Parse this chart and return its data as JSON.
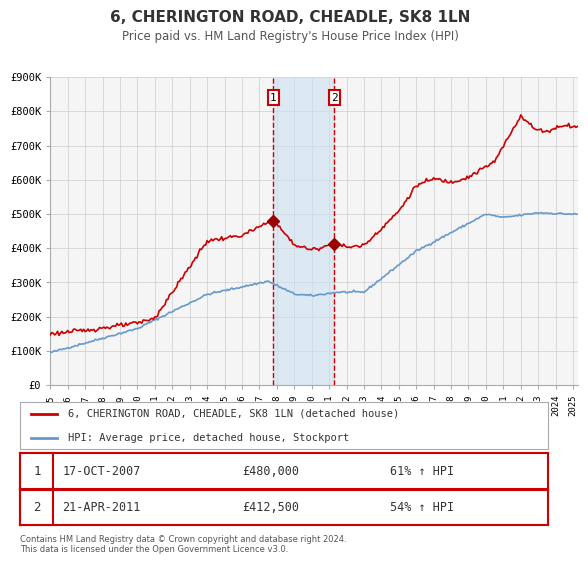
{
  "title": "6, CHERINGTON ROAD, CHEADLE, SK8 1LN",
  "subtitle": "Price paid vs. HM Land Registry's House Price Index (HPI)",
  "xlabel": "",
  "ylabel": "",
  "ylim": [
    0,
    900000
  ],
  "xlim_start": 1995.0,
  "xlim_end": 2025.3,
  "red_line_color": "#cc0000",
  "blue_line_color": "#6699cc",
  "grid_color": "#cccccc",
  "background_color": "#ffffff",
  "plot_bg_color": "#f5f5f5",
  "sale1_x": 2007.79,
  "sale1_y": 480000,
  "sale1_label": "1",
  "sale2_x": 2011.3,
  "sale2_y": 412500,
  "sale2_label": "2",
  "shade_start": 2007.79,
  "shade_end": 2011.3,
  "legend_line1": "6, CHERINGTON ROAD, CHEADLE, SK8 1LN (detached house)",
  "legend_line2": "HPI: Average price, detached house, Stockport",
  "table_row1_num": "1",
  "table_row1_date": "17-OCT-2007",
  "table_row1_price": "£480,000",
  "table_row1_hpi": "61% ↑ HPI",
  "table_row2_num": "2",
  "table_row2_date": "21-APR-2011",
  "table_row2_price": "£412,500",
  "table_row2_hpi": "54% ↑ HPI",
  "footer": "Contains HM Land Registry data © Crown copyright and database right 2024.\nThis data is licensed under the Open Government Licence v3.0.",
  "yticks": [
    0,
    100000,
    200000,
    300000,
    400000,
    500000,
    600000,
    700000,
    800000,
    900000
  ],
  "ytick_labels": [
    "£0",
    "£100K",
    "£200K",
    "£300K",
    "£400K",
    "£500K",
    "£600K",
    "£700K",
    "£800K",
    "£900K"
  ],
  "xticks": [
    1995,
    1996,
    1997,
    1998,
    1999,
    2000,
    2001,
    2002,
    2003,
    2004,
    2005,
    2006,
    2007,
    2008,
    2009,
    2010,
    2011,
    2012,
    2013,
    2014,
    2015,
    2016,
    2017,
    2018,
    2019,
    2020,
    2021,
    2022,
    2023,
    2024,
    2025
  ]
}
